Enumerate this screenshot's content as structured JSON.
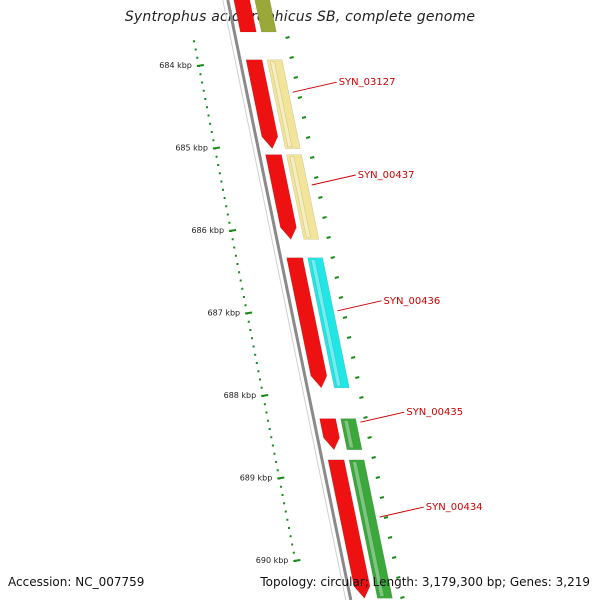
{
  "title": "Syntrophus aciditrophicus SB, complete genome",
  "footer": {
    "accession": "Accession: NC_007759",
    "summary": "Topology: circular; Length: 3,179,300 bp; Genes: 3,219"
  },
  "ticks": [
    {
      "label": "684 kbp",
      "kbp": 684
    },
    {
      "label": "685 kbp",
      "kbp": 685
    },
    {
      "label": "686 kbp",
      "kbp": 686
    },
    {
      "label": "687 kbp",
      "kbp": 687
    },
    {
      "label": "688 kbp",
      "kbp": 688
    },
    {
      "label": "689 kbp",
      "kbp": 689
    },
    {
      "label": "690 kbp",
      "kbp": 690
    }
  ],
  "genes": [
    {
      "label": "SYN_03127",
      "start_kbp": 683.9,
      "end_kbp": 685.05,
      "strand": "forward",
      "product_color": "#f2e59a"
    },
    {
      "label": "SYN_00437",
      "start_kbp": 685.05,
      "end_kbp": 686.15,
      "strand": "forward",
      "product_color": "#f2e59a"
    },
    {
      "label": "SYN_00436",
      "start_kbp": 686.3,
      "end_kbp": 687.95,
      "strand": "forward",
      "product_color": "#22e6e6"
    },
    {
      "label": "SYN_00435",
      "start_kbp": 688.25,
      "end_kbp": 688.7,
      "strand": "forward",
      "product_color": "#3aa83a"
    },
    {
      "label": "SYN_00434",
      "start_kbp": 688.75,
      "end_kbp": 690.5,
      "strand": "forward",
      "product_color": "#3aa83a"
    }
  ],
  "colors": {
    "cds": "#ee1111",
    "backbone": "#8a8a8a",
    "tick": "#1a8a1a",
    "label": "#cc0000"
  }
}
